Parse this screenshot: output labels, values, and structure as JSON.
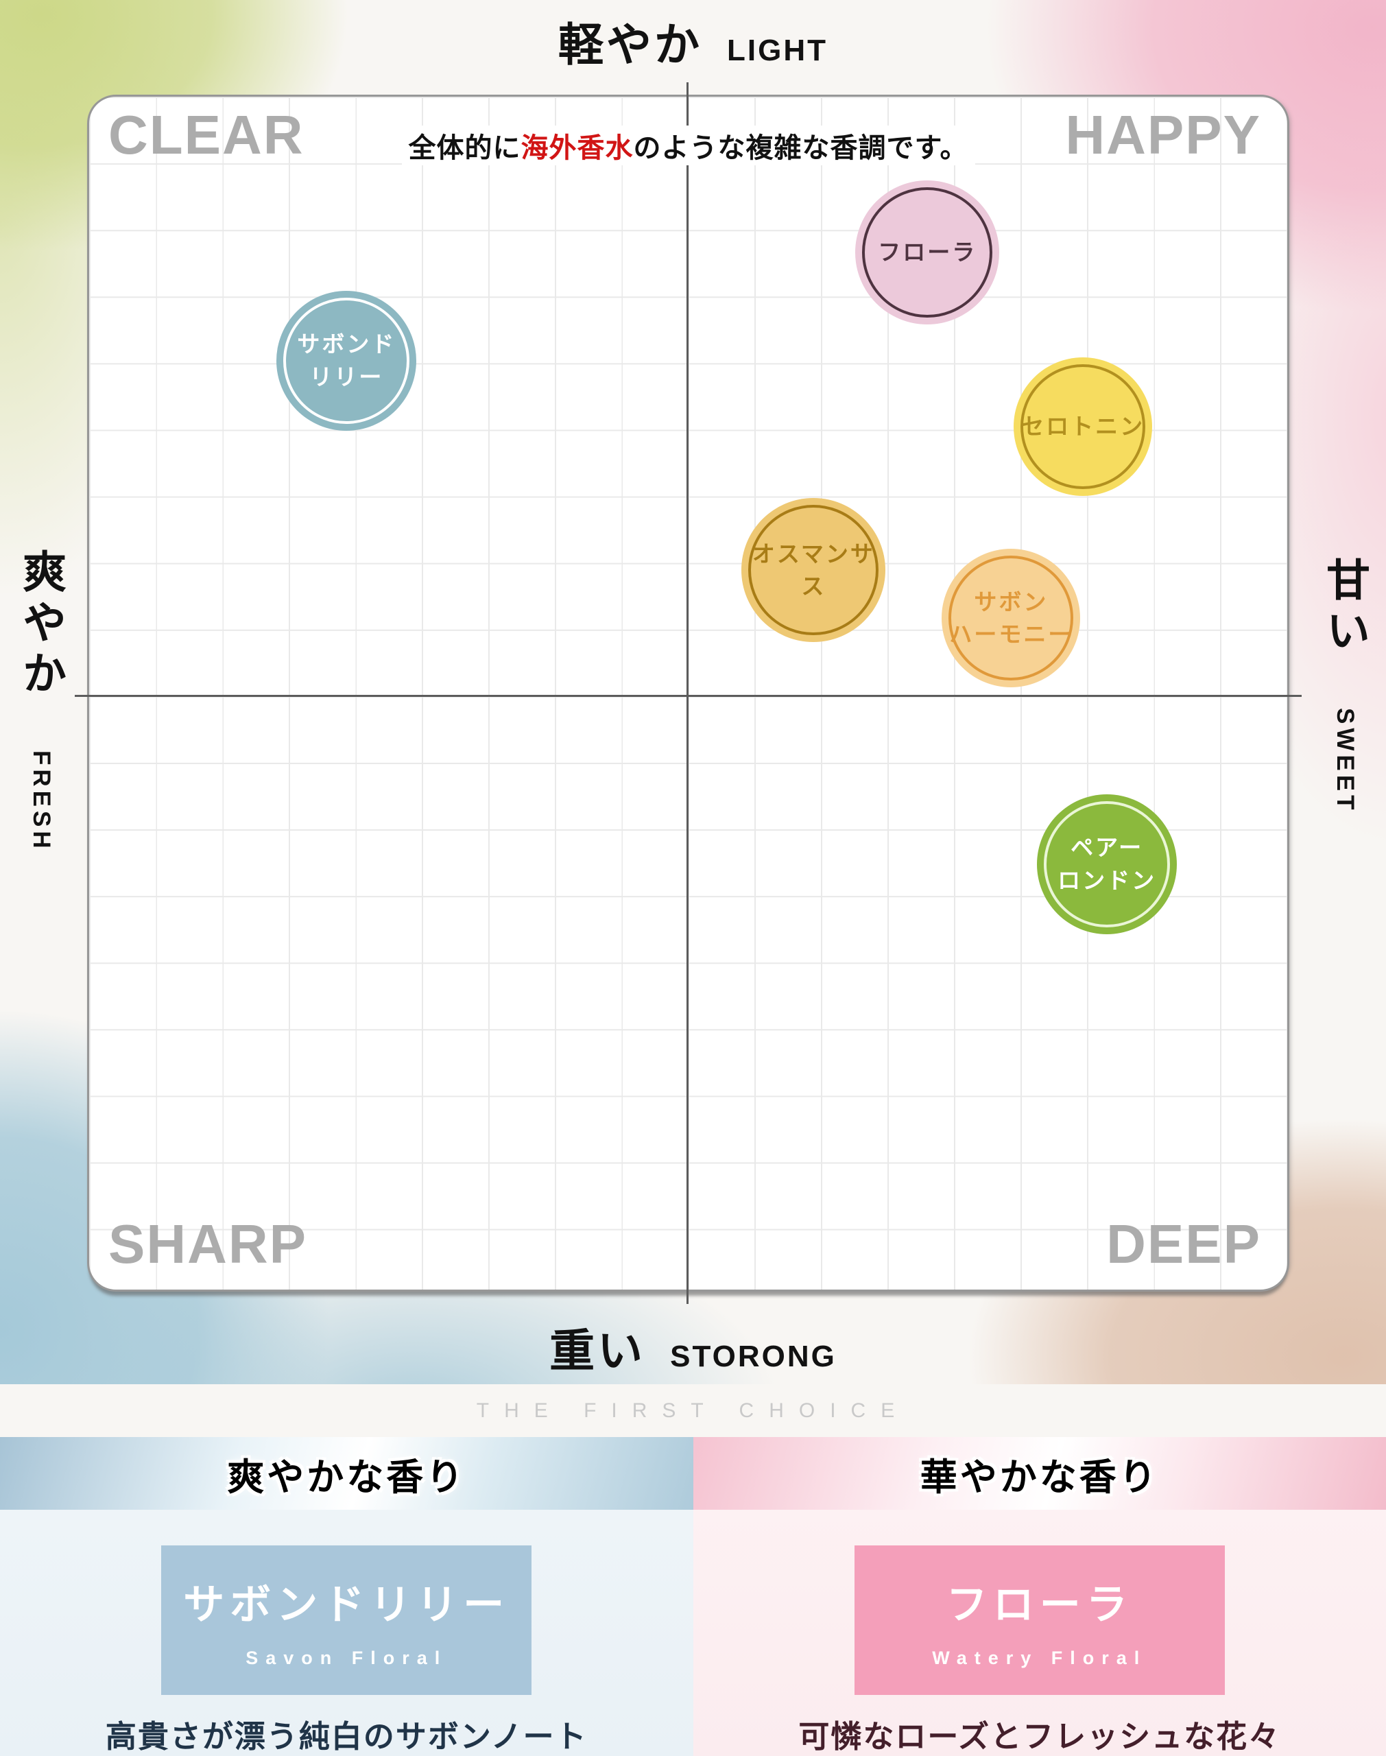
{
  "title_top": {
    "jp": "軽やか",
    "en": "LIGHT"
  },
  "axis_left": {
    "jp": "爽やか",
    "en": "FRESH"
  },
  "axis_right": {
    "jp": "甘い",
    "en": "SWEET"
  },
  "axis_bottom": {
    "jp": "重い",
    "en": "STORONG"
  },
  "quadrants": {
    "top_left": "CLEAR",
    "top_right": "HAPPY",
    "bottom_left": "SHARP",
    "bottom_right": "DEEP"
  },
  "annotation": {
    "prefix": "全体的に",
    "highlight": "海外香水",
    "suffix": "のような複雑な香調です。",
    "highlight_color": "#d11515"
  },
  "chart_data": {
    "type": "scatter",
    "title": "香調マップ（軽やか⇔重い / 爽やか⇔甘い）",
    "x_axis": {
      "min_label": "爽やか FRESH",
      "max_label": "甘い SWEET"
    },
    "y_axis": {
      "min_label": "重い STORONG",
      "max_label": "軽やか LIGHT"
    },
    "x_range": [
      -1,
      1
    ],
    "y_range": [
      -1,
      1
    ],
    "grid": true,
    "points": [
      {
        "name": "フローラ",
        "lines": [
          "フローラ"
        ],
        "x": 0.4,
        "y": 0.74,
        "r": 105,
        "fill": "#ecc9da",
        "ring": "#4e3340",
        "label_color": "#4e3340"
      },
      {
        "name": "サボンドリリー",
        "lines": [
          "サボンド",
          "リリー"
        ],
        "x": -0.57,
        "y": 0.56,
        "r": 102,
        "fill": "#8db8c2",
        "ring": "#ffffff",
        "label_color": "#ffffff"
      },
      {
        "name": "セロトニン",
        "lines": [
          "セロトニン"
        ],
        "x": 0.66,
        "y": 0.45,
        "r": 101,
        "fill": "#f6dc5f",
        "ring": "#b2901f",
        "label_color": "#b2901f"
      },
      {
        "name": "オスマンサス",
        "lines": [
          "オスマンサス"
        ],
        "x": 0.21,
        "y": 0.21,
        "r": 105,
        "fill": "#eec873",
        "ring": "#a87c16",
        "label_color": "#a87c16"
      },
      {
        "name": "サボンハーモニー",
        "lines": [
          "サボン",
          "ハーモニー"
        ],
        "x": 0.54,
        "y": 0.13,
        "r": 101,
        "fill": "#f7d294",
        "ring": "#e0993a",
        "label_color": "#e0993a"
      },
      {
        "name": "ペアーロンドン",
        "lines": [
          "ペアー",
          "ロンドン"
        ],
        "x": 0.7,
        "y": -0.28,
        "r": 102,
        "fill": "#8bb93d",
        "ring": "#eaf6d6",
        "label_color": "#ffffff"
      }
    ]
  },
  "footer": {
    "tagline": "THE FIRST CHOICE",
    "panels": [
      {
        "heading": "爽やかな香り",
        "product": "サボンドリリー",
        "product_en": "Savon Floral",
        "description": "高貴さが漂う純白のサボンノート",
        "accent": "#a9c6da",
        "desc_color": "#203448"
      },
      {
        "heading": "華やかな香り",
        "product": "フローラ",
        "product_en": "Watery Floral",
        "description": "可憐なローズとフレッシュな花々",
        "accent": "#f49fba",
        "desc_color": "#441f2b"
      }
    ]
  }
}
